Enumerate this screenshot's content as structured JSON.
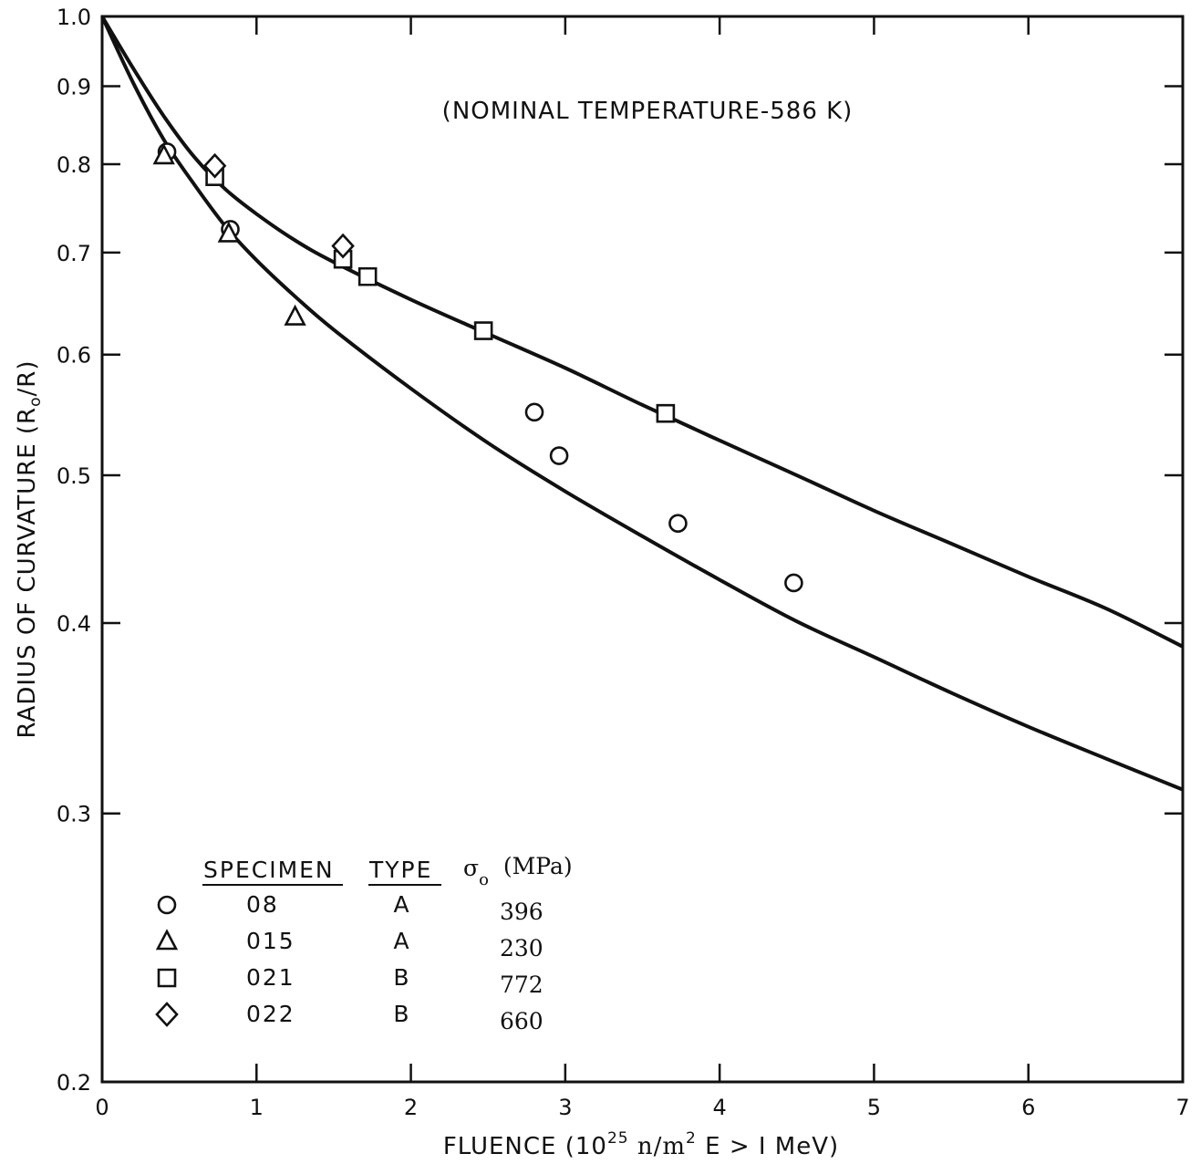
{
  "chart_data": {
    "type": "scatter",
    "xlabel": {
      "prefix": "FLUENCE  (10",
      "sup": "25",
      "units": " n/m",
      "sup2": "2",
      "suffix": "   E > I MeV)"
    },
    "ylabel": {
      "prefix": "RADIUS OF CURVATURE (R",
      "sub": "o",
      "suffix": "/R)"
    },
    "annotation": "(NOMINAL TEMPERATURE-586  K)",
    "x_axis": {
      "min": 0,
      "max": 7,
      "scale": "linear",
      "ticks": [
        0,
        1,
        2,
        3,
        4,
        5,
        6,
        7
      ],
      "tick_labels": [
        "0",
        "1",
        "2",
        "3",
        "4",
        "5",
        "6",
        "7"
      ]
    },
    "y_axis": {
      "min": 0.2,
      "max": 1.0,
      "scale": "log",
      "ticks": [
        0.2,
        0.3,
        0.4,
        0.5,
        0.6,
        0.7,
        0.8,
        0.9,
        1.0
      ],
      "tick_labels": [
        "0.2",
        "0.3",
        "0.4",
        "0.5",
        "0.6",
        "0.7",
        "0.8",
        "0.9",
        "1.0"
      ]
    },
    "grid": false,
    "legend": {
      "placement": "bottom-left",
      "headers": {
        "specimen": "SPECIMEN",
        "type": "TYPE",
        "sigma": "σ",
        "sigma_sub": "o",
        "units": "(MPa)"
      },
      "rows": [
        {
          "marker": "circle",
          "specimen": "08",
          "type": "A",
          "stress": "396"
        },
        {
          "marker": "triangle",
          "specimen": "015",
          "type": "A",
          "stress": "230"
        },
        {
          "marker": "square",
          "specimen": "021",
          "type": "B",
          "stress": "772"
        },
        {
          "marker": "diamond",
          "specimen": "022",
          "type": "B",
          "stress": "660"
        }
      ]
    },
    "series": [
      {
        "marker": "circle",
        "points": [
          [
            0.42,
            0.815
          ],
          [
            0.83,
            0.725
          ],
          [
            2.8,
            0.55
          ],
          [
            2.96,
            0.515
          ],
          [
            3.73,
            0.465
          ],
          [
            4.48,
            0.425
          ]
        ]
      },
      {
        "marker": "triangle",
        "points": [
          [
            0.4,
            0.81
          ],
          [
            0.82,
            0.72
          ],
          [
            1.25,
            0.635
          ]
        ]
      },
      {
        "marker": "square",
        "points": [
          [
            0.73,
            0.785
          ],
          [
            1.56,
            0.693
          ],
          [
            1.72,
            0.675
          ],
          [
            2.47,
            0.622
          ],
          [
            3.65,
            0.549
          ]
        ]
      },
      {
        "marker": "diamond",
        "points": [
          [
            0.73,
            0.798
          ],
          [
            1.56,
            0.707
          ]
        ]
      }
    ],
    "fit_curves": [
      {
        "points": [
          [
            0,
            1.0
          ],
          [
            0.2,
            0.905
          ],
          [
            0.4,
            0.83
          ],
          [
            0.6,
            0.775
          ],
          [
            0.8,
            0.728
          ],
          [
            1.0,
            0.692
          ],
          [
            1.25,
            0.655
          ],
          [
            1.5,
            0.623
          ],
          [
            2.0,
            0.57
          ],
          [
            2.5,
            0.525
          ],
          [
            3.0,
            0.488
          ],
          [
            3.5,
            0.456
          ],
          [
            4.0,
            0.427
          ],
          [
            4.5,
            0.401
          ],
          [
            5.0,
            0.38
          ],
          [
            5.5,
            0.36
          ],
          [
            6.0,
            0.342
          ],
          [
            6.5,
            0.326
          ],
          [
            7.0,
            0.311
          ]
        ]
      },
      {
        "points": [
          [
            0,
            1.0
          ],
          [
            0.2,
            0.925
          ],
          [
            0.4,
            0.86
          ],
          [
            0.6,
            0.808
          ],
          [
            0.8,
            0.77
          ],
          [
            1.0,
            0.742
          ],
          [
            1.25,
            0.713
          ],
          [
            1.5,
            0.69
          ],
          [
            2.0,
            0.652
          ],
          [
            2.5,
            0.619
          ],
          [
            3.0,
            0.588
          ],
          [
            3.5,
            0.556
          ],
          [
            4.0,
            0.527
          ],
          [
            4.5,
            0.5
          ],
          [
            5.0,
            0.474
          ],
          [
            5.5,
            0.451
          ],
          [
            6.0,
            0.429
          ],
          [
            6.5,
            0.409
          ],
          [
            7.0,
            0.386
          ]
        ]
      }
    ]
  }
}
